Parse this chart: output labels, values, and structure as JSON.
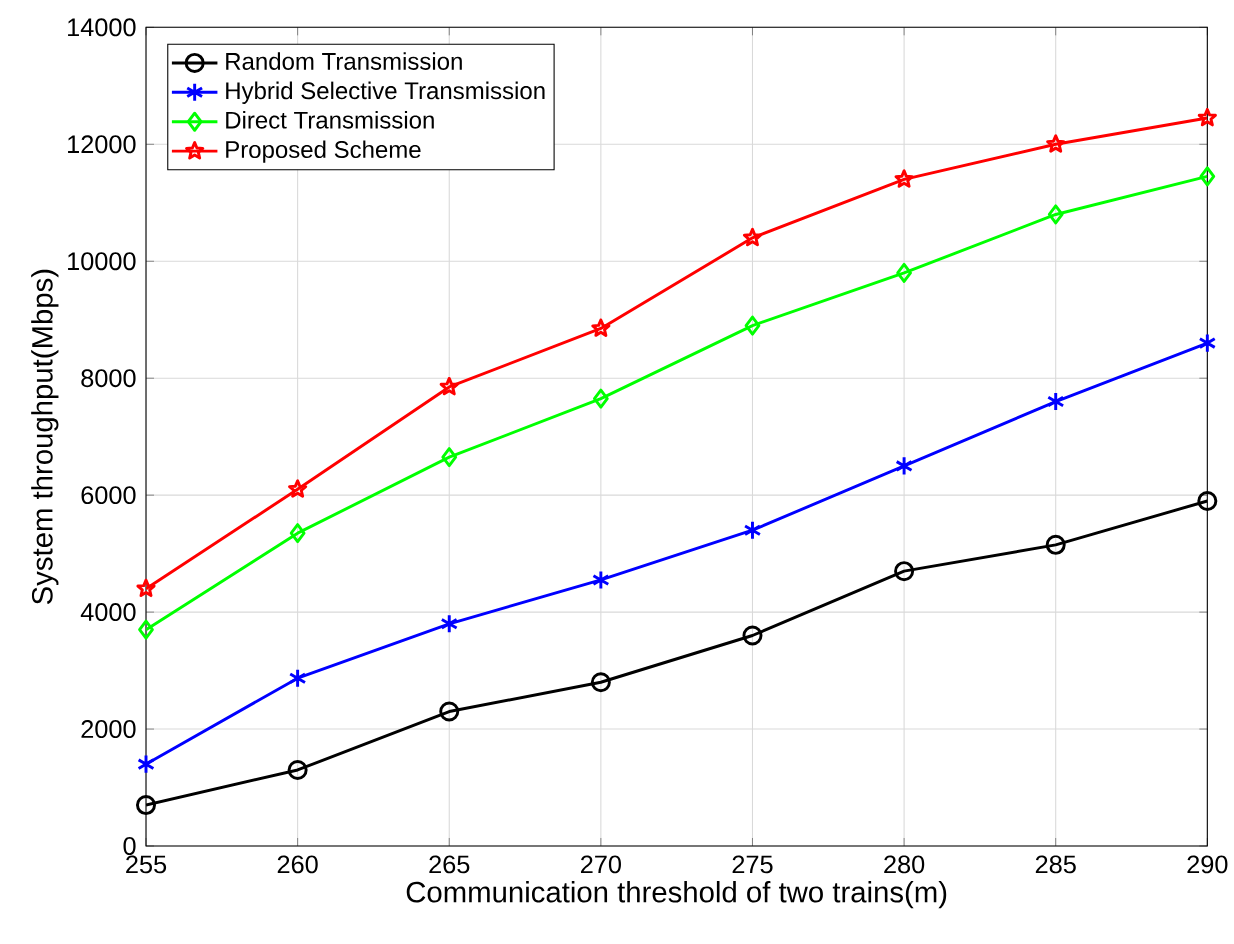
{
  "chart_data": {
    "type": "line",
    "xlabel": "Communication threshold of two trains(m)",
    "ylabel": "System throughput(Mbps)",
    "x": [
      255,
      260,
      265,
      270,
      275,
      280,
      285,
      290
    ],
    "xlim": [
      255,
      290
    ],
    "xticks": [
      255,
      260,
      265,
      270,
      275,
      280,
      285,
      290
    ],
    "ylim": [
      0,
      14000
    ],
    "yticks": [
      0,
      2000,
      4000,
      6000,
      8000,
      10000,
      12000,
      14000
    ],
    "grid": true,
    "legend": "top left",
    "line_style": "solid",
    "series": [
      {
        "name": "Random Transmission",
        "color": "#000000",
        "marker": "circle",
        "values": [
          700,
          1300,
          2300,
          2800,
          3600,
          4700,
          5150,
          5900
        ]
      },
      {
        "name": "Hybrid Selective Transmission",
        "color": "#0000ff",
        "marker": "cross",
        "values": [
          1400,
          2870,
          3800,
          4550,
          5400,
          6500,
          7600,
          8600
        ]
      },
      {
        "name": "Direct Transmission",
        "color": "#00ff00",
        "marker": "diamond",
        "values": [
          3700,
          5350,
          6650,
          7650,
          8900,
          9800,
          10800,
          11450
        ]
      },
      {
        "name": "Proposed Scheme",
        "color": "#ff0000",
        "marker": "star",
        "values": [
          4400,
          6100,
          7850,
          8850,
          10400,
          11400,
          12000,
          12450
        ]
      }
    ]
  }
}
